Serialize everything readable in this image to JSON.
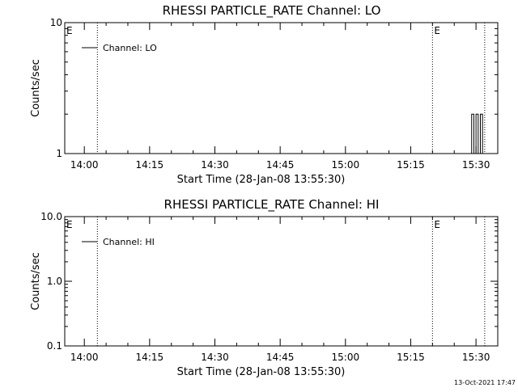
{
  "chart_data": [
    {
      "type": "line",
      "title": "RHESSI PARTICLE_RATE Channel: LO",
      "xlabel": "Start Time (28-Jan-08 13:55:30)",
      "ylabel": "Counts/sec",
      "y_scale": "log",
      "ylim": [
        1,
        10
      ],
      "y_tick_labels": [
        "1",
        "10"
      ],
      "xlim": [
        "13:55:30",
        "15:35:00"
      ],
      "x_tick_labels": [
        "14:00",
        "14:15",
        "14:30",
        "14:45",
        "15:00",
        "15:15",
        "15:30"
      ],
      "legend": {
        "position": "top-left",
        "entries": [
          "Channel: LO"
        ]
      },
      "markers": [
        {
          "time": "14:03:00",
          "label": "",
          "style": "dotted"
        },
        {
          "time": "15:20:00",
          "label": "E",
          "style": "dotted"
        },
        {
          "time": "15:32:00",
          "label": "",
          "style": "dotted"
        }
      ],
      "edge_labels": [
        {
          "time": "13:55:30",
          "label": "E"
        }
      ],
      "series": [
        {
          "name": "Channel: LO",
          "x": [
            "15:29:00",
            "15:29:00",
            "15:29:30",
            "15:29:30",
            "15:30:00",
            "15:30:00",
            "15:30:30",
            "15:30:30",
            "15:31:00",
            "15:31:00",
            "15:31:30",
            "15:31:30",
            "15:32:00"
          ],
          "y": [
            1,
            2,
            2,
            1,
            1,
            2,
            2,
            1,
            1,
            2,
            2,
            1,
            1
          ]
        }
      ]
    },
    {
      "type": "line",
      "title": "RHESSI PARTICLE_RATE Channel: HI",
      "xlabel": "Start Time (28-Jan-08 13:55:30)",
      "ylabel": "Counts/sec",
      "y_scale": "log",
      "ylim": [
        0.1,
        10
      ],
      "y_tick_labels": [
        "0.1",
        "1.0",
        "10.0"
      ],
      "xlim": [
        "13:55:30",
        "15:35:00"
      ],
      "x_tick_labels": [
        "14:00",
        "14:15",
        "14:30",
        "14:45",
        "15:00",
        "15:15",
        "15:30"
      ],
      "legend": {
        "position": "top-left",
        "entries": [
          "Channel: HI"
        ]
      },
      "markers": [
        {
          "time": "14:03:00",
          "label": "",
          "style": "dotted"
        },
        {
          "time": "15:20:00",
          "label": "E",
          "style": "dotted"
        },
        {
          "time": "15:32:00",
          "label": "",
          "style": "dotted"
        }
      ],
      "edge_labels": [
        {
          "time": "13:55:30",
          "label": "E"
        }
      ],
      "series": [
        {
          "name": "Channel: HI",
          "x": [],
          "y": []
        }
      ]
    }
  ],
  "footer": {
    "timestamp": "13-Oct-2021 17:47"
  }
}
